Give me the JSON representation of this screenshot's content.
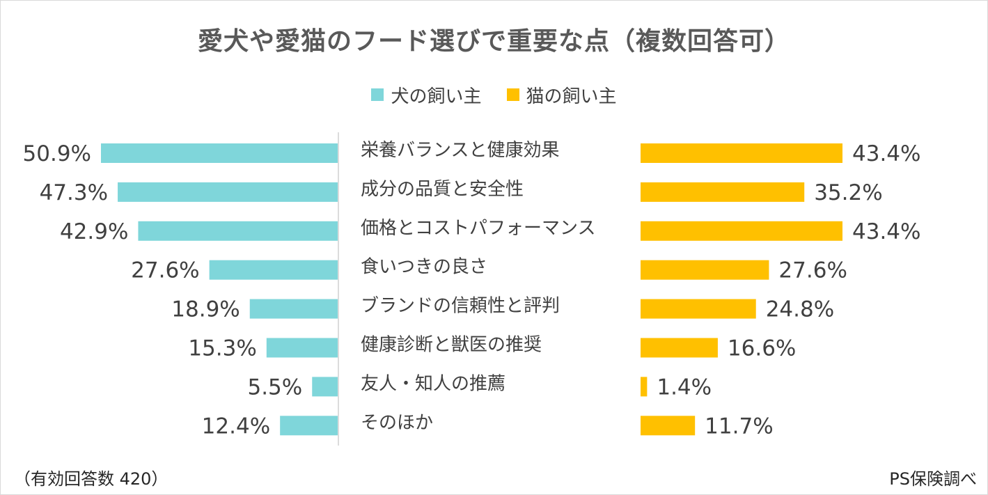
{
  "chart_data": {
    "type": "bar",
    "title": "愛犬や愛猫のフード選びで重要な点（複数回答可）",
    "categories": [
      "栄養バランスと健康効果",
      "成分の品質と安全性",
      "価格とコストパフォーマンス",
      "食いつきの良さ",
      "ブランドの信頼性と評判",
      "健康診断と獣医の推奨",
      "友人・知人の推薦",
      "そのほか"
    ],
    "series": [
      {
        "name": "犬の飼い主",
        "color": "#7fd6da",
        "values": [
          50.9,
          47.3,
          42.9,
          27.6,
          18.9,
          15.3,
          5.5,
          12.4
        ],
        "labels": [
          "50.9%",
          "47.3%",
          "42.9%",
          "27.6%",
          "18.9%",
          "15.3%",
          "5.5%",
          "12.4%"
        ]
      },
      {
        "name": "猫の飼い主",
        "color": "#ffc000",
        "values": [
          43.4,
          35.2,
          43.4,
          27.6,
          24.8,
          16.6,
          1.4,
          11.7
        ],
        "labels": [
          "43.4%",
          "35.2%",
          "43.4%",
          "27.6%",
          "24.8%",
          "16.6%",
          "1.4%",
          "11.7%"
        ]
      }
    ],
    "legend_position": "top-center",
    "unit": "%"
  },
  "footer": {
    "note": "（有効回答数 420）",
    "source": "PS保険調べ"
  }
}
